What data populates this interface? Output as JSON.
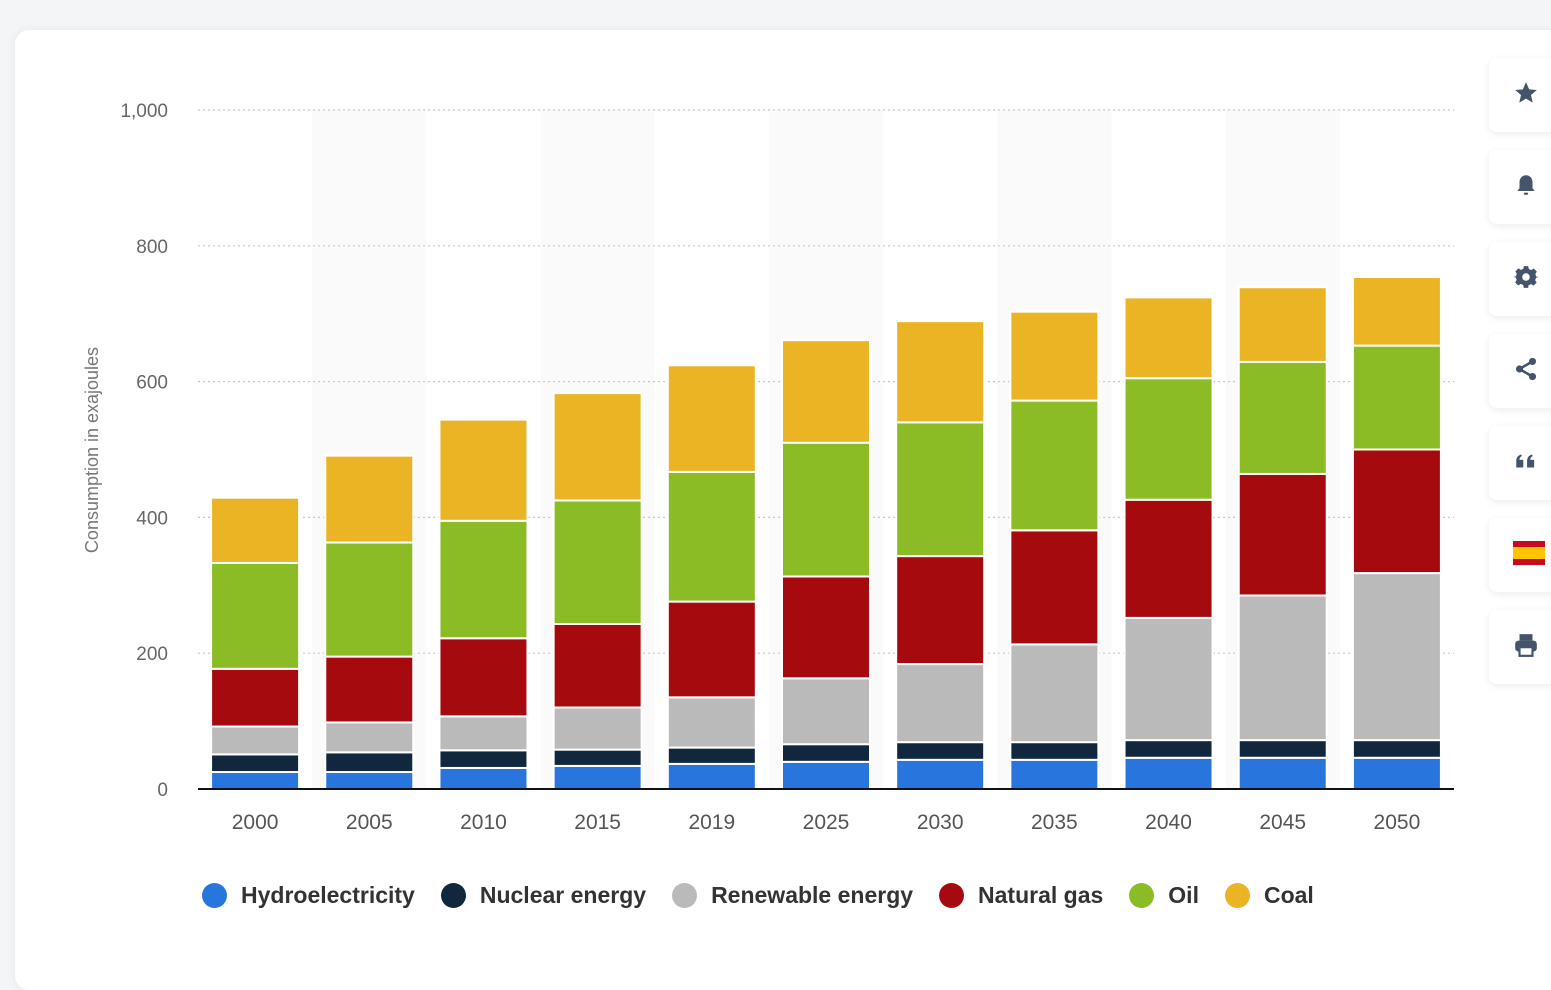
{
  "chart_data": {
    "type": "bar",
    "stacked": true,
    "title": "",
    "xlabel": "",
    "ylabel": "Consumption in exajoules",
    "ylim": [
      0,
      1000
    ],
    "yticks": [
      0,
      200,
      400,
      600,
      800,
      1000
    ],
    "ytick_labels": [
      "0",
      "200",
      "400",
      "600",
      "800",
      "1,000"
    ],
    "grid": true,
    "legend_position": "bottom-left",
    "categories": [
      "2000",
      "2005",
      "2010",
      "2015",
      "2019",
      "2025",
      "2030",
      "2035",
      "2040",
      "2045",
      "2050"
    ],
    "series": [
      {
        "name": "Hydroelectricity",
        "color": "#2876dd",
        "values": [
          25,
          25,
          31,
          34,
          37,
          40,
          43,
          43,
          46,
          46,
          46
        ]
      },
      {
        "name": "Nuclear energy",
        "color": "#10273e",
        "values": [
          26,
          29,
          26,
          24,
          24,
          26,
          26,
          26,
          26,
          26,
          26
        ]
      },
      {
        "name": "Renewable energy",
        "color": "#bababa",
        "values": [
          41,
          44,
          50,
          62,
          74,
          97,
          115,
          144,
          180,
          213,
          246
        ]
      },
      {
        "name": "Natural gas",
        "color": "#a50b0e",
        "values": [
          85,
          97,
          115,
          123,
          141,
          150,
          159,
          168,
          174,
          179,
          182
        ]
      },
      {
        "name": "Oil",
        "color": "#8bbc26",
        "values": [
          156,
          168,
          173,
          182,
          191,
          197,
          197,
          191,
          179,
          165,
          153
        ]
      },
      {
        "name": "Coal",
        "color": "#eab424",
        "values": [
          96,
          128,
          149,
          158,
          157,
          151,
          149,
          131,
          119,
          110,
          101
        ]
      }
    ]
  },
  "toolbar": {
    "items": [
      {
        "name": "favorite",
        "icon": "star-icon"
      },
      {
        "name": "notification",
        "icon": "bell-icon"
      },
      {
        "name": "settings",
        "icon": "gear-icon"
      },
      {
        "name": "share",
        "icon": "share-icon"
      },
      {
        "name": "cite",
        "icon": "quote-icon"
      },
      {
        "name": "language",
        "icon": "spain-flag-icon"
      },
      {
        "name": "print",
        "icon": "printer-icon"
      }
    ],
    "icon_color": "#44546a"
  }
}
